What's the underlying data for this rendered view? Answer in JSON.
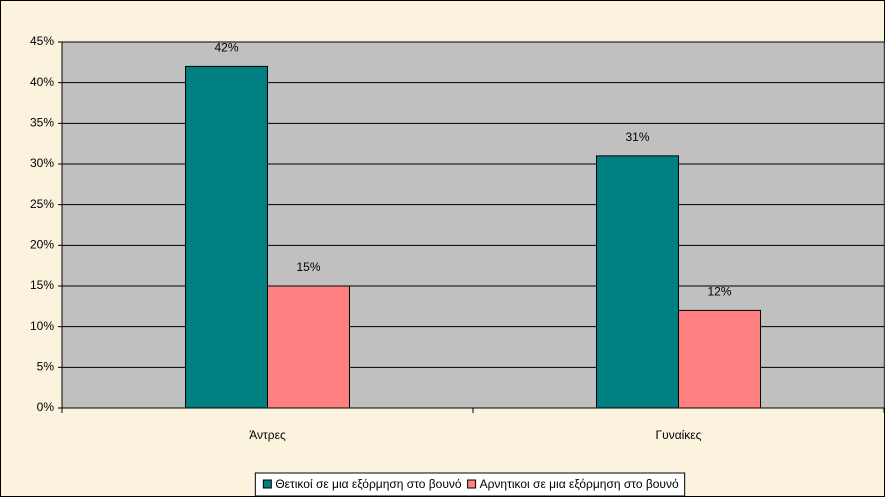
{
  "chart_data": {
    "type": "bar",
    "categories": [
      "Άντρες",
      "Γυναίκες"
    ],
    "series": [
      {
        "name": "Θετικοί σε μια εξόρμηση στο βουνό",
        "color": "#008080",
        "values": [
          42,
          31
        ],
        "value_labels": [
          "42%",
          "31%"
        ]
      },
      {
        "name": "Αρνητικοι σε μια εξόρμηση στο βουνό",
        "color": "#ff8080",
        "values": [
          15,
          12
        ],
        "value_labels": [
          "15%",
          "12%"
        ]
      }
    ],
    "ylim": [
      0,
      45
    ],
    "yticks": [
      {
        "value": 0,
        "label": "0%"
      },
      {
        "value": 5,
        "label": "5%"
      },
      {
        "value": 10,
        "label": "10%"
      },
      {
        "value": 15,
        "label": "15%"
      },
      {
        "value": 20,
        "label": "20%"
      },
      {
        "value": 25,
        "label": "25%"
      },
      {
        "value": 30,
        "label": "30%"
      },
      {
        "value": 35,
        "label": "35%"
      },
      {
        "value": 40,
        "label": "40%"
      },
      {
        "value": 45,
        "label": "45%"
      }
    ],
    "grid": true,
    "legend": "bottom",
    "plot_background": "#c0c0c0"
  }
}
